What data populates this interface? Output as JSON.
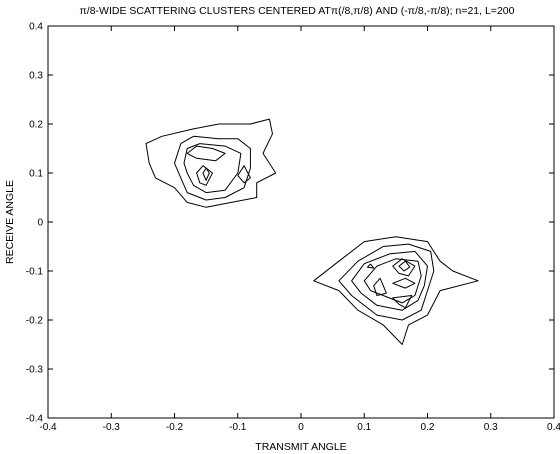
{
  "chart_data": {
    "type": "contour",
    "title": "π/8-WIDE SCATTERING CLUSTERS CENTERED ATπ(/8,π/8) AND (-π/8,-π/8); n=21, L=200",
    "xlabel": "TRANSMIT ANGLE",
    "ylabel": "RECEIVE ANGLE",
    "xlim": [
      -0.4,
      0.4
    ],
    "ylim": [
      -0.4,
      0.4
    ],
    "xticks": [
      -0.4,
      -0.3,
      -0.2,
      -0.1,
      0,
      0.1,
      0.2,
      0.3,
      0.4
    ],
    "yticks": [
      0.4,
      0.3,
      0.2,
      0.1,
      0,
      -0.1,
      -0.2,
      -0.3,
      -0.4
    ],
    "xtick_labels": [
      "-0.4",
      "-0.3",
      "-0.2",
      "-0.1",
      "0",
      "0.1",
      "0.2",
      "0.3",
      "0.4"
    ],
    "ytick_labels": [
      "0.4",
      "0.3",
      "0.2",
      "0.1",
      "0",
      "-0.1",
      "-0.2",
      "-0.3",
      "-0.4"
    ],
    "grid": false,
    "clusters": [
      {
        "center": [
          -0.15,
          0.13
        ],
        "contours": [
          [
            [
              -0.24,
              0.12
            ],
            [
              -0.245,
              0.16
            ],
            [
              -0.22,
              0.175
            ],
            [
              -0.17,
              0.19
            ],
            [
              -0.13,
              0.2
            ],
            [
              -0.08,
              0.2
            ],
            [
              -0.05,
              0.21
            ],
            [
              -0.045,
              0.18
            ],
            [
              -0.06,
              0.14
            ],
            [
              -0.04,
              0.1
            ],
            [
              -0.07,
              0.08
            ],
            [
              -0.07,
              0.05
            ],
            [
              -0.11,
              0.04
            ],
            [
              -0.15,
              0.03
            ],
            [
              -0.18,
              0.04
            ],
            [
              -0.2,
              0.07
            ],
            [
              -0.23,
              0.09
            ]
          ],
          [
            [
              -0.2,
              0.12
            ],
            [
              -0.19,
              0.16
            ],
            [
              -0.17,
              0.175
            ],
            [
              -0.13,
              0.17
            ],
            [
              -0.1,
              0.17
            ],
            [
              -0.08,
              0.15
            ],
            [
              -0.08,
              0.11
            ],
            [
              -0.09,
              0.07
            ],
            [
              -0.12,
              0.05
            ],
            [
              -0.15,
              0.045
            ],
            [
              -0.18,
              0.06
            ],
            [
              -0.19,
              0.09
            ]
          ],
          [
            [
              -0.185,
              0.12
            ],
            [
              -0.18,
              0.15
            ],
            [
              -0.16,
              0.16
            ],
            [
              -0.12,
              0.155
            ],
            [
              -0.095,
              0.14
            ],
            [
              -0.1,
              0.1
            ],
            [
              -0.12,
              0.065
            ],
            [
              -0.15,
              0.06
            ],
            [
              -0.17,
              0.075
            ],
            [
              -0.18,
              0.1
            ]
          ],
          [
            [
              -0.18,
              0.14
            ],
            [
              -0.165,
              0.155
            ],
            [
              -0.14,
              0.15
            ],
            [
              -0.12,
              0.14
            ],
            [
              -0.135,
              0.125
            ],
            [
              -0.165,
              0.13
            ]
          ],
          [
            [
              -0.165,
              0.1
            ],
            [
              -0.155,
              0.115
            ],
            [
              -0.14,
              0.1
            ],
            [
              -0.15,
              0.075
            ],
            [
              -0.16,
              0.08
            ]
          ],
          [
            [
              -0.155,
              0.1
            ],
            [
              -0.15,
              0.11
            ],
            [
              -0.145,
              0.1
            ],
            [
              -0.15,
              0.085
            ]
          ],
          [
            [
              -0.1,
              0.095
            ],
            [
              -0.09,
              0.115
            ],
            [
              -0.08,
              0.09
            ],
            [
              -0.09,
              0.08
            ]
          ]
        ]
      },
      {
        "center": [
          0.15,
          -0.12
        ],
        "contours": [
          [
            [
              0.02,
              -0.12
            ],
            [
              0.06,
              -0.08
            ],
            [
              0.1,
              -0.04
            ],
            [
              0.15,
              -0.03
            ],
            [
              0.2,
              -0.04
            ],
            [
              0.22,
              -0.08
            ],
            [
              0.24,
              -0.1
            ],
            [
              0.28,
              -0.12
            ],
            [
              0.22,
              -0.14
            ],
            [
              0.2,
              -0.19
            ],
            [
              0.17,
              -0.21
            ],
            [
              0.16,
              -0.25
            ],
            [
              0.13,
              -0.21
            ],
            [
              0.09,
              -0.18
            ],
            [
              0.06,
              -0.14
            ]
          ],
          [
            [
              0.06,
              -0.12
            ],
            [
              0.09,
              -0.08
            ],
            [
              0.13,
              -0.05
            ],
            [
              0.17,
              -0.045
            ],
            [
              0.205,
              -0.06
            ],
            [
              0.21,
              -0.1
            ],
            [
              0.2,
              -0.14
            ],
            [
              0.19,
              -0.18
            ],
            [
              0.16,
              -0.2
            ],
            [
              0.12,
              -0.19
            ],
            [
              0.08,
              -0.15
            ]
          ],
          [
            [
              0.08,
              -0.12
            ],
            [
              0.1,
              -0.085
            ],
            [
              0.14,
              -0.065
            ],
            [
              0.18,
              -0.06
            ],
            [
              0.2,
              -0.09
            ],
            [
              0.195,
              -0.13
            ],
            [
              0.185,
              -0.16
            ],
            [
              0.16,
              -0.18
            ],
            [
              0.12,
              -0.17
            ],
            [
              0.095,
              -0.145
            ]
          ],
          [
            [
              0.1,
              -0.12
            ],
            [
              0.12,
              -0.09
            ],
            [
              0.15,
              -0.075
            ],
            [
              0.185,
              -0.08
            ],
            [
              0.19,
              -0.11
            ],
            [
              0.18,
              -0.15
            ],
            [
              0.16,
              -0.165
            ],
            [
              0.13,
              -0.15
            ],
            [
              0.11,
              -0.14
            ]
          ],
          [
            [
              0.145,
              -0.09
            ],
            [
              0.16,
              -0.075
            ],
            [
              0.18,
              -0.09
            ],
            [
              0.17,
              -0.11
            ],
            [
              0.155,
              -0.105
            ]
          ],
          [
            [
              0.155,
              -0.09
            ],
            [
              0.165,
              -0.08
            ],
            [
              0.172,
              -0.092
            ],
            [
              0.163,
              -0.1
            ]
          ],
          [
            [
              0.145,
              -0.125
            ],
            [
              0.165,
              -0.115
            ],
            [
              0.18,
              -0.125
            ],
            [
              0.165,
              -0.135
            ]
          ],
          [
            [
              0.115,
              -0.13
            ],
            [
              0.125,
              -0.115
            ],
            [
              0.135,
              -0.145
            ],
            [
              0.12,
              -0.15
            ]
          ],
          [
            [
              0.145,
              -0.155
            ],
            [
              0.175,
              -0.15
            ],
            [
              0.165,
              -0.175
            ],
            [
              0.155,
              -0.168
            ]
          ],
          [
            [
              0.105,
              -0.092
            ],
            [
              0.11,
              -0.086
            ],
            [
              0.115,
              -0.094
            ]
          ]
        ]
      }
    ]
  }
}
